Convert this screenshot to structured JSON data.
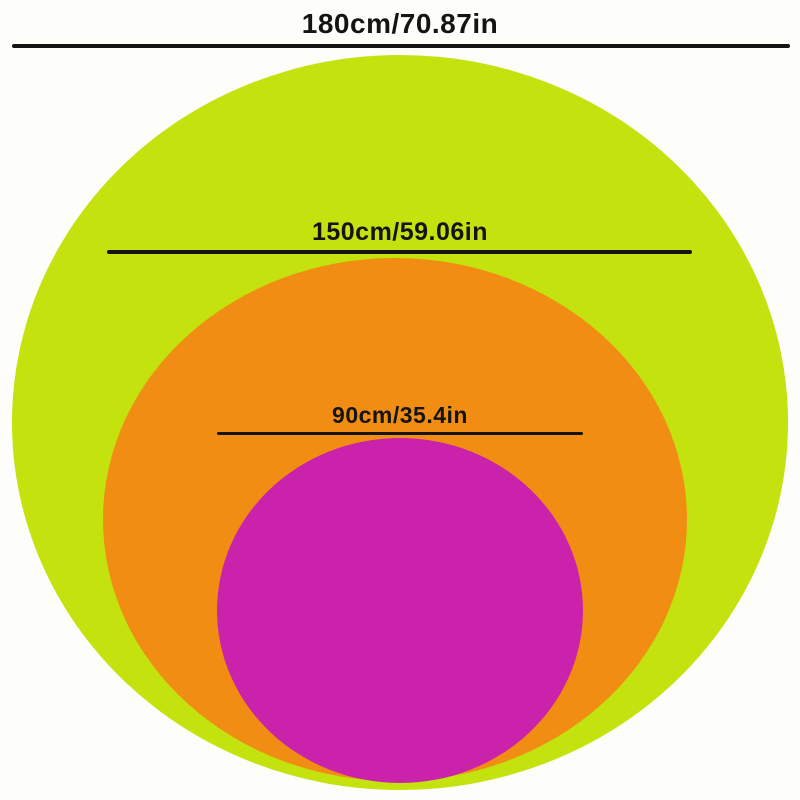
{
  "diagram_type": "nested-circle-size-comparison",
  "colors": {
    "background": "#fdfdf9",
    "line": "#141414",
    "text": "#141414"
  },
  "circles": [
    {
      "name": "large",
      "label": "180cm/70.87in",
      "diameter_cm": 180,
      "diameter_in": 70.87,
      "color": "#c3e20e"
    },
    {
      "name": "medium",
      "label": "150cm/59.06in",
      "diameter_cm": 150,
      "diameter_in": 59.06,
      "color": "#f08d12"
    },
    {
      "name": "small",
      "label": "90cm/35.4in",
      "diameter_cm": 90,
      "diameter_in": 35.4,
      "color": "#ca22aa"
    }
  ]
}
